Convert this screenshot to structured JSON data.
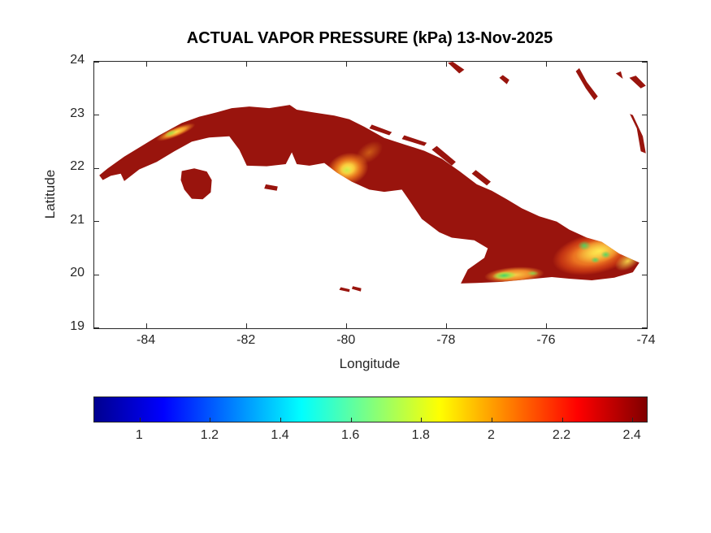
{
  "chart_data": {
    "type": "heatmap",
    "title": "ACTUAL VAPOR PRESSURE (kPa) 13-Nov-2025",
    "variable": "actual vapor pressure",
    "units": "kPa",
    "date": "13-Nov-2025",
    "xlabel": "Longitude",
    "ylabel": "Latitude",
    "xlim": [
      -85.05,
      -74
    ],
    "ylim": [
      19,
      24
    ],
    "xticks": [
      -84,
      -82,
      -80,
      -78,
      -76,
      -74
    ],
    "yticks": [
      19,
      20,
      21,
      22,
      23,
      24
    ],
    "grid": false,
    "legend": "none",
    "dominant_value_kpa": 2.4,
    "colors": {
      "land": "#99140d",
      "background": "#ffffff",
      "axis": "#262626"
    },
    "colorbar": {
      "orientation": "horizontal",
      "position": "south",
      "range": [
        0.87,
        2.44
      ],
      "ticks": [
        1,
        1.2,
        1.4,
        1.6,
        1.8,
        2,
        2.2,
        2.4
      ],
      "colormap": "jet",
      "stops": [
        {
          "pos": 0,
          "color": "#00008f"
        },
        {
          "pos": 0.125,
          "color": "#0000ff"
        },
        {
          "pos": 0.375,
          "color": "#00ffff"
        },
        {
          "pos": 0.625,
          "color": "#ffff00"
        },
        {
          "pos": 0.875,
          "color": "#ff0000"
        },
        {
          "pos": 1,
          "color": "#800000"
        }
      ]
    },
    "regions": {
      "main_island": [
        [
          -84.95,
          21.87
        ],
        [
          -84.78,
          22.0
        ],
        [
          -84.45,
          22.22
        ],
        [
          -84.1,
          22.42
        ],
        [
          -83.75,
          22.62
        ],
        [
          -83.3,
          22.85
        ],
        [
          -82.95,
          22.97
        ],
        [
          -82.6,
          23.05
        ],
        [
          -82.3,
          23.13
        ],
        [
          -81.95,
          23.16
        ],
        [
          -81.55,
          23.13
        ],
        [
          -81.14,
          23.19
        ],
        [
          -81.0,
          23.1
        ],
        [
          -80.6,
          23.04
        ],
        [
          -80.25,
          22.99
        ],
        [
          -79.95,
          22.92
        ],
        [
          -79.65,
          22.78
        ],
        [
          -79.25,
          22.57
        ],
        [
          -78.85,
          22.45
        ],
        [
          -78.45,
          22.33
        ],
        [
          -78.1,
          22.18
        ],
        [
          -77.75,
          21.95
        ],
        [
          -77.4,
          21.7
        ],
        [
          -77.1,
          21.58
        ],
        [
          -76.8,
          21.42
        ],
        [
          -76.5,
          21.25
        ],
        [
          -76.15,
          21.1
        ],
        [
          -75.8,
          21.0
        ],
        [
          -75.55,
          20.85
        ],
        [
          -75.2,
          20.7
        ],
        [
          -74.9,
          20.62
        ],
        [
          -74.55,
          20.4
        ],
        [
          -74.15,
          20.23
        ],
        [
          -74.28,
          20.05
        ],
        [
          -74.65,
          19.95
        ],
        [
          -75.1,
          19.9
        ],
        [
          -75.55,
          19.93
        ],
        [
          -75.9,
          19.96
        ],
        [
          -76.35,
          19.92
        ],
        [
          -76.9,
          19.87
        ],
        [
          -77.4,
          19.85
        ],
        [
          -77.72,
          19.84
        ],
        [
          -77.58,
          20.1
        ],
        [
          -77.25,
          20.32
        ],
        [
          -77.18,
          20.5
        ],
        [
          -77.45,
          20.65
        ],
        [
          -77.9,
          20.7
        ],
        [
          -78.15,
          20.8
        ],
        [
          -78.5,
          21.05
        ],
        [
          -78.75,
          21.4
        ],
        [
          -78.9,
          21.6
        ],
        [
          -79.25,
          21.56
        ],
        [
          -79.55,
          21.6
        ],
        [
          -79.9,
          21.75
        ],
        [
          -80.2,
          21.92
        ],
        [
          -80.45,
          22.1
        ],
        [
          -80.75,
          22.05
        ],
        [
          -81.0,
          22.08
        ],
        [
          -81.1,
          22.3
        ],
        [
          -81.22,
          22.08
        ],
        [
          -81.6,
          22.04
        ],
        [
          -82.0,
          22.05
        ],
        [
          -82.15,
          22.35
        ],
        [
          -82.35,
          22.6
        ],
        [
          -82.75,
          22.58
        ],
        [
          -83.1,
          22.5
        ],
        [
          -83.45,
          22.32
        ],
        [
          -83.8,
          22.12
        ],
        [
          -84.15,
          21.98
        ],
        [
          -84.45,
          21.76
        ],
        [
          -84.52,
          21.9
        ],
        [
          -84.72,
          21.86
        ],
        [
          -84.88,
          21.78
        ]
      ],
      "isla_de_la_juventud": [
        [
          -83.3,
          21.95
        ],
        [
          -83.05,
          22.0
        ],
        [
          -82.8,
          21.94
        ],
        [
          -82.7,
          21.78
        ],
        [
          -82.72,
          21.55
        ],
        [
          -82.88,
          21.42
        ],
        [
          -83.1,
          21.43
        ],
        [
          -83.25,
          21.6
        ],
        [
          -83.32,
          21.78
        ]
      ],
      "small_islands": [
        {
          "name": "cayo-coco",
          "pts": [
            [
              -78.9,
              22.55
            ],
            [
              -78.45,
              22.42
            ],
            [
              -78.4,
              22.48
            ],
            [
              -78.85,
              22.62
            ]
          ]
        },
        {
          "name": "cayo-romano",
          "pts": [
            [
              -78.3,
              22.35
            ],
            [
              -77.9,
              22.05
            ],
            [
              -77.82,
              22.12
            ],
            [
              -78.2,
              22.42
            ]
          ]
        },
        {
          "name": "cayo-sabinal",
          "pts": [
            [
              -77.5,
              21.9
            ],
            [
              -77.2,
              21.68
            ],
            [
              -77.12,
              21.75
            ],
            [
              -77.42,
              21.97
            ]
          ]
        },
        {
          "name": "cayos-villa-clara",
          "pts": [
            [
              -79.55,
              22.75
            ],
            [
              -79.15,
              22.62
            ],
            [
              -79.1,
              22.68
            ],
            [
              -79.5,
              22.82
            ]
          ]
        },
        {
          "name": "cayo-largo",
          "pts": [
            [
              -81.65,
              21.62
            ],
            [
              -81.4,
              21.58
            ],
            [
              -81.38,
              21.66
            ],
            [
              -81.62,
              21.7
            ]
          ]
        },
        {
          "name": "little-cayman",
          "pts": [
            [
              -80.15,
              19.72
            ],
            [
              -79.95,
              19.68
            ],
            [
              -79.94,
              19.73
            ],
            [
              -80.12,
              19.77
            ]
          ]
        },
        {
          "name": "cayman-brac",
          "pts": [
            [
              -79.9,
              19.74
            ],
            [
              -79.72,
              19.69
            ],
            [
              -79.71,
              19.75
            ],
            [
              -79.88,
              19.79
            ]
          ]
        },
        {
          "name": "andros-tip",
          "pts": [
            [
              -77.98,
              23.98
            ],
            [
              -77.75,
              23.78
            ],
            [
              -77.65,
              23.85
            ],
            [
              -77.88,
              24.0
            ]
          ]
        },
        {
          "name": "exuma-cay",
          "pts": [
            [
              -76.95,
              23.7
            ],
            [
              -76.8,
              23.58
            ],
            [
              -76.75,
              23.66
            ],
            [
              -76.88,
              23.75
            ]
          ]
        },
        {
          "name": "long-island-bahamas",
          "pts": [
            [
              -75.42,
              23.82
            ],
            [
              -75.22,
              23.5
            ],
            [
              -75.05,
              23.28
            ],
            [
              -74.98,
              23.35
            ],
            [
              -75.2,
              23.62
            ],
            [
              -75.35,
              23.88
            ]
          ]
        },
        {
          "name": "rum-cay",
          "pts": [
            [
              -74.62,
              23.78
            ],
            [
              -74.48,
              23.68
            ],
            [
              -74.52,
              23.82
            ]
          ]
        },
        {
          "name": "samana-cay",
          "pts": [
            [
              -74.35,
              23.7
            ],
            [
              -74.12,
              23.5
            ],
            [
              -74.02,
              23.55
            ],
            [
              -74.22,
              23.74
            ]
          ]
        },
        {
          "name": "crooked-acklins",
          "pts": [
            [
              -74.28,
              23.0
            ],
            [
              -74.08,
              22.6
            ],
            [
              -74.02,
              22.28
            ],
            [
              -74.12,
              22.32
            ],
            [
              -74.2,
              22.75
            ],
            [
              -74.34,
              23.02
            ]
          ]
        }
      ]
    },
    "hotspots": [
      {
        "name": "escambray-main",
        "lon": -79.98,
        "lat": 21.99,
        "rx": 0.42,
        "ry": 0.3,
        "rot": -15,
        "approx_kpa": 1.9,
        "stops": [
          {
            "o": 0,
            "c": "#fff056",
            "a": 1
          },
          {
            "o": 0.3,
            "c": "#ffd23e",
            "a": 0.95
          },
          {
            "o": 0.6,
            "c": "#f5821e",
            "a": 0.8
          },
          {
            "o": 1,
            "c": "#f5821e",
            "a": 0
          }
        ]
      },
      {
        "name": "escambray-green",
        "lon": -80.0,
        "lat": 21.97,
        "rx": 0.11,
        "ry": 0.08,
        "rot": 0,
        "approx_kpa": 1.7,
        "stops": [
          {
            "o": 0,
            "c": "#c8e848",
            "a": 0.9
          },
          {
            "o": 1,
            "c": "#c8e848",
            "a": 0
          }
        ]
      },
      {
        "name": "escambray-ne",
        "lon": -79.55,
        "lat": 22.3,
        "rx": 0.3,
        "ry": 0.17,
        "rot": -35,
        "approx_kpa": 2.2,
        "stops": [
          {
            "o": 0,
            "c": "#f5921e",
            "a": 0.55
          },
          {
            "o": 1,
            "c": "#f5921e",
            "a": 0
          }
        ]
      },
      {
        "name": "pinar-ridge",
        "lon": -83.42,
        "lat": 22.68,
        "rx": 0.42,
        "ry": 0.09,
        "rot": -22,
        "approx_kpa": 1.9,
        "stops": [
          {
            "o": 0,
            "c": "#ffe84d",
            "a": 1
          },
          {
            "o": 0.5,
            "c": "#ffaa2e",
            "a": 0.85
          },
          {
            "o": 1,
            "c": "#f5821e",
            "a": 0
          }
        ]
      },
      {
        "name": "pinar-ridge-green",
        "lon": -83.52,
        "lat": 22.66,
        "rx": 0.13,
        "ry": 0.05,
        "rot": -22,
        "approx_kpa": 1.7,
        "stops": [
          {
            "o": 0,
            "c": "#9be04a",
            "a": 0.9
          },
          {
            "o": 1,
            "c": "#9be04a",
            "a": 0
          }
        ]
      },
      {
        "name": "sierra-maestra",
        "lon": -76.65,
        "lat": 20.0,
        "rx": 0.6,
        "ry": 0.15,
        "rot": -4,
        "approx_kpa": 1.8,
        "stops": [
          {
            "o": 0,
            "c": "#ffd94d",
            "a": 0.95
          },
          {
            "o": 0.55,
            "c": "#ff9d2e",
            "a": 0.85
          },
          {
            "o": 1,
            "c": "#ff9d2e",
            "a": 0
          }
        ]
      },
      {
        "name": "sierra-maestra-green",
        "lon": -76.85,
        "lat": 19.99,
        "rx": 0.24,
        "ry": 0.08,
        "rot": -4,
        "approx_kpa": 1.6,
        "stops": [
          {
            "o": 0,
            "c": "#36d96b",
            "a": 0.95
          },
          {
            "o": 0.6,
            "c": "#a5e84a",
            "a": 0.75
          },
          {
            "o": 1,
            "c": "#a5e84a",
            "a": 0
          }
        ]
      },
      {
        "name": "sierra-maestra-green-2",
        "lon": -76.28,
        "lat": 20.03,
        "rx": 0.12,
        "ry": 0.05,
        "rot": 0,
        "approx_kpa": 1.7,
        "stops": [
          {
            "o": 0,
            "c": "#7fe050",
            "a": 0.85
          },
          {
            "o": 1,
            "c": "#7fe050",
            "a": 0
          }
        ]
      },
      {
        "name": "east-highlands",
        "lon": -75.05,
        "lat": 20.4,
        "rx": 0.85,
        "ry": 0.38,
        "rot": -12,
        "approx_kpa": 2.1,
        "stops": [
          {
            "o": 0,
            "c": "#ffc63a",
            "a": 0.92
          },
          {
            "o": 0.5,
            "c": "#ff8a26",
            "a": 0.8
          },
          {
            "o": 0.8,
            "c": "#ee5518",
            "a": 0.5
          },
          {
            "o": 1,
            "c": "#ee5518",
            "a": 0
          }
        ]
      },
      {
        "name": "east-highlands-core",
        "lon": -74.95,
        "lat": 20.45,
        "rx": 0.48,
        "ry": 0.22,
        "rot": -12,
        "approx_kpa": 1.9,
        "stops": [
          {
            "o": 0,
            "c": "#ffec52",
            "a": 0.95
          },
          {
            "o": 1,
            "c": "#ffec52",
            "a": 0
          }
        ]
      },
      {
        "name": "east-green-1",
        "lon": -75.25,
        "lat": 20.55,
        "rx": 0.13,
        "ry": 0.09,
        "rot": 0,
        "approx_kpa": 1.7,
        "stops": [
          {
            "o": 0,
            "c": "#45d964",
            "a": 0.9
          },
          {
            "o": 1,
            "c": "#45d964",
            "a": 0
          }
        ]
      },
      {
        "name": "east-green-2",
        "lon": -74.82,
        "lat": 20.38,
        "rx": 0.1,
        "ry": 0.07,
        "rot": 0,
        "approx_kpa": 1.7,
        "stops": [
          {
            "o": 0,
            "c": "#45d964",
            "a": 0.9
          },
          {
            "o": 1,
            "c": "#45d964",
            "a": 0
          }
        ]
      },
      {
        "name": "east-green-3",
        "lon": -75.03,
        "lat": 20.28,
        "rx": 0.09,
        "ry": 0.06,
        "rot": 0,
        "approx_kpa": 1.7,
        "stops": [
          {
            "o": 0,
            "c": "#45d964",
            "a": 0.9
          },
          {
            "o": 1,
            "c": "#45d964",
            "a": 0
          }
        ]
      },
      {
        "name": "east-tip",
        "lon": -74.38,
        "lat": 20.26,
        "rx": 0.28,
        "ry": 0.15,
        "rot": -30,
        "approx_kpa": 2.0,
        "stops": [
          {
            "o": 0,
            "c": "#ffe24d",
            "a": 0.9
          },
          {
            "o": 1,
            "c": "#ffe24d",
            "a": 0
          }
        ]
      }
    ]
  }
}
